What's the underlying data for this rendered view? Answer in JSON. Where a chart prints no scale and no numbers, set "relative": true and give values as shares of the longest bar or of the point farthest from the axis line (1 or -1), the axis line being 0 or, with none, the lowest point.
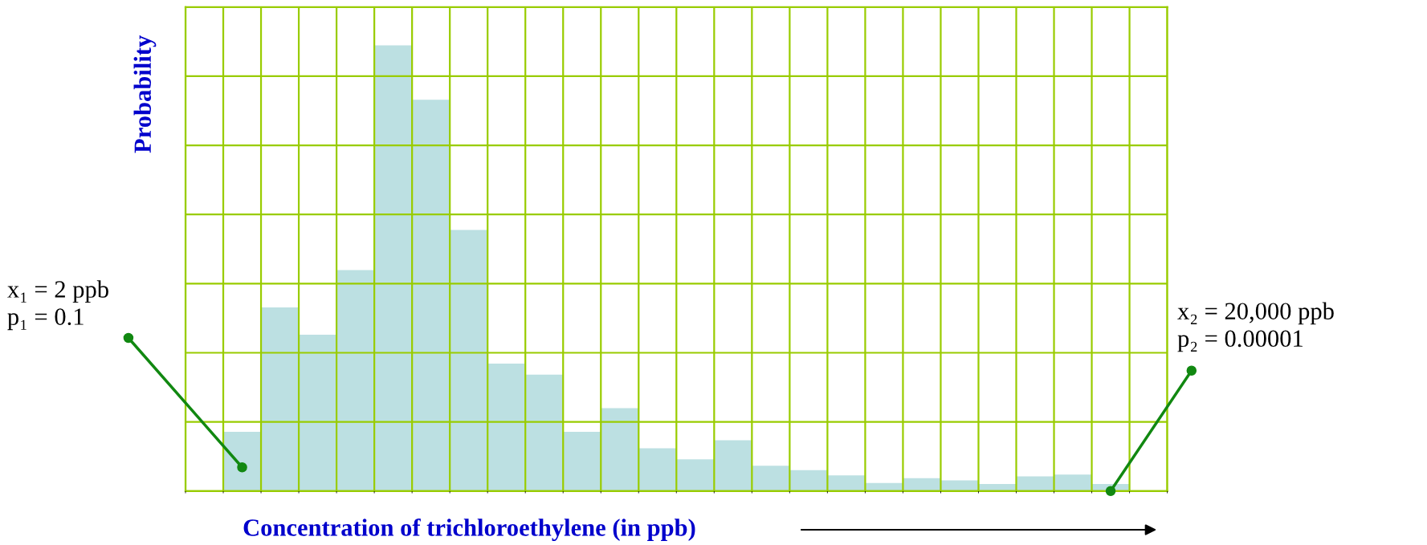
{
  "chart_data": {
    "type": "bar",
    "relative": true,
    "categories": [
      null,
      null,
      null,
      null,
      null,
      null,
      null,
      null,
      null,
      null,
      null,
      null,
      null,
      null,
      null,
      null,
      null,
      null,
      null,
      null,
      null,
      null,
      null,
      null
    ],
    "values": [
      0.133,
      0.412,
      0.351,
      0.496,
      1,
      0.878,
      0.586,
      0.286,
      0.261,
      0.133,
      0.186,
      0.096,
      0.071,
      0.114,
      0.057,
      0.047,
      0.035,
      0.018,
      0.029,
      0.024,
      0.016,
      0.033,
      0.037,
      0.016
    ],
    "color": "#bce0e2",
    "grid": true,
    "xlabel": "Concentration of trichloroethylene (in ppb)",
    "ylabel": "Probability",
    "annotations": [
      "x₁ = 2 ppb\np₁ = 0.1",
      "x₂ = 20,000 ppb\np₂ = 0.00001"
    ]
  }
}
